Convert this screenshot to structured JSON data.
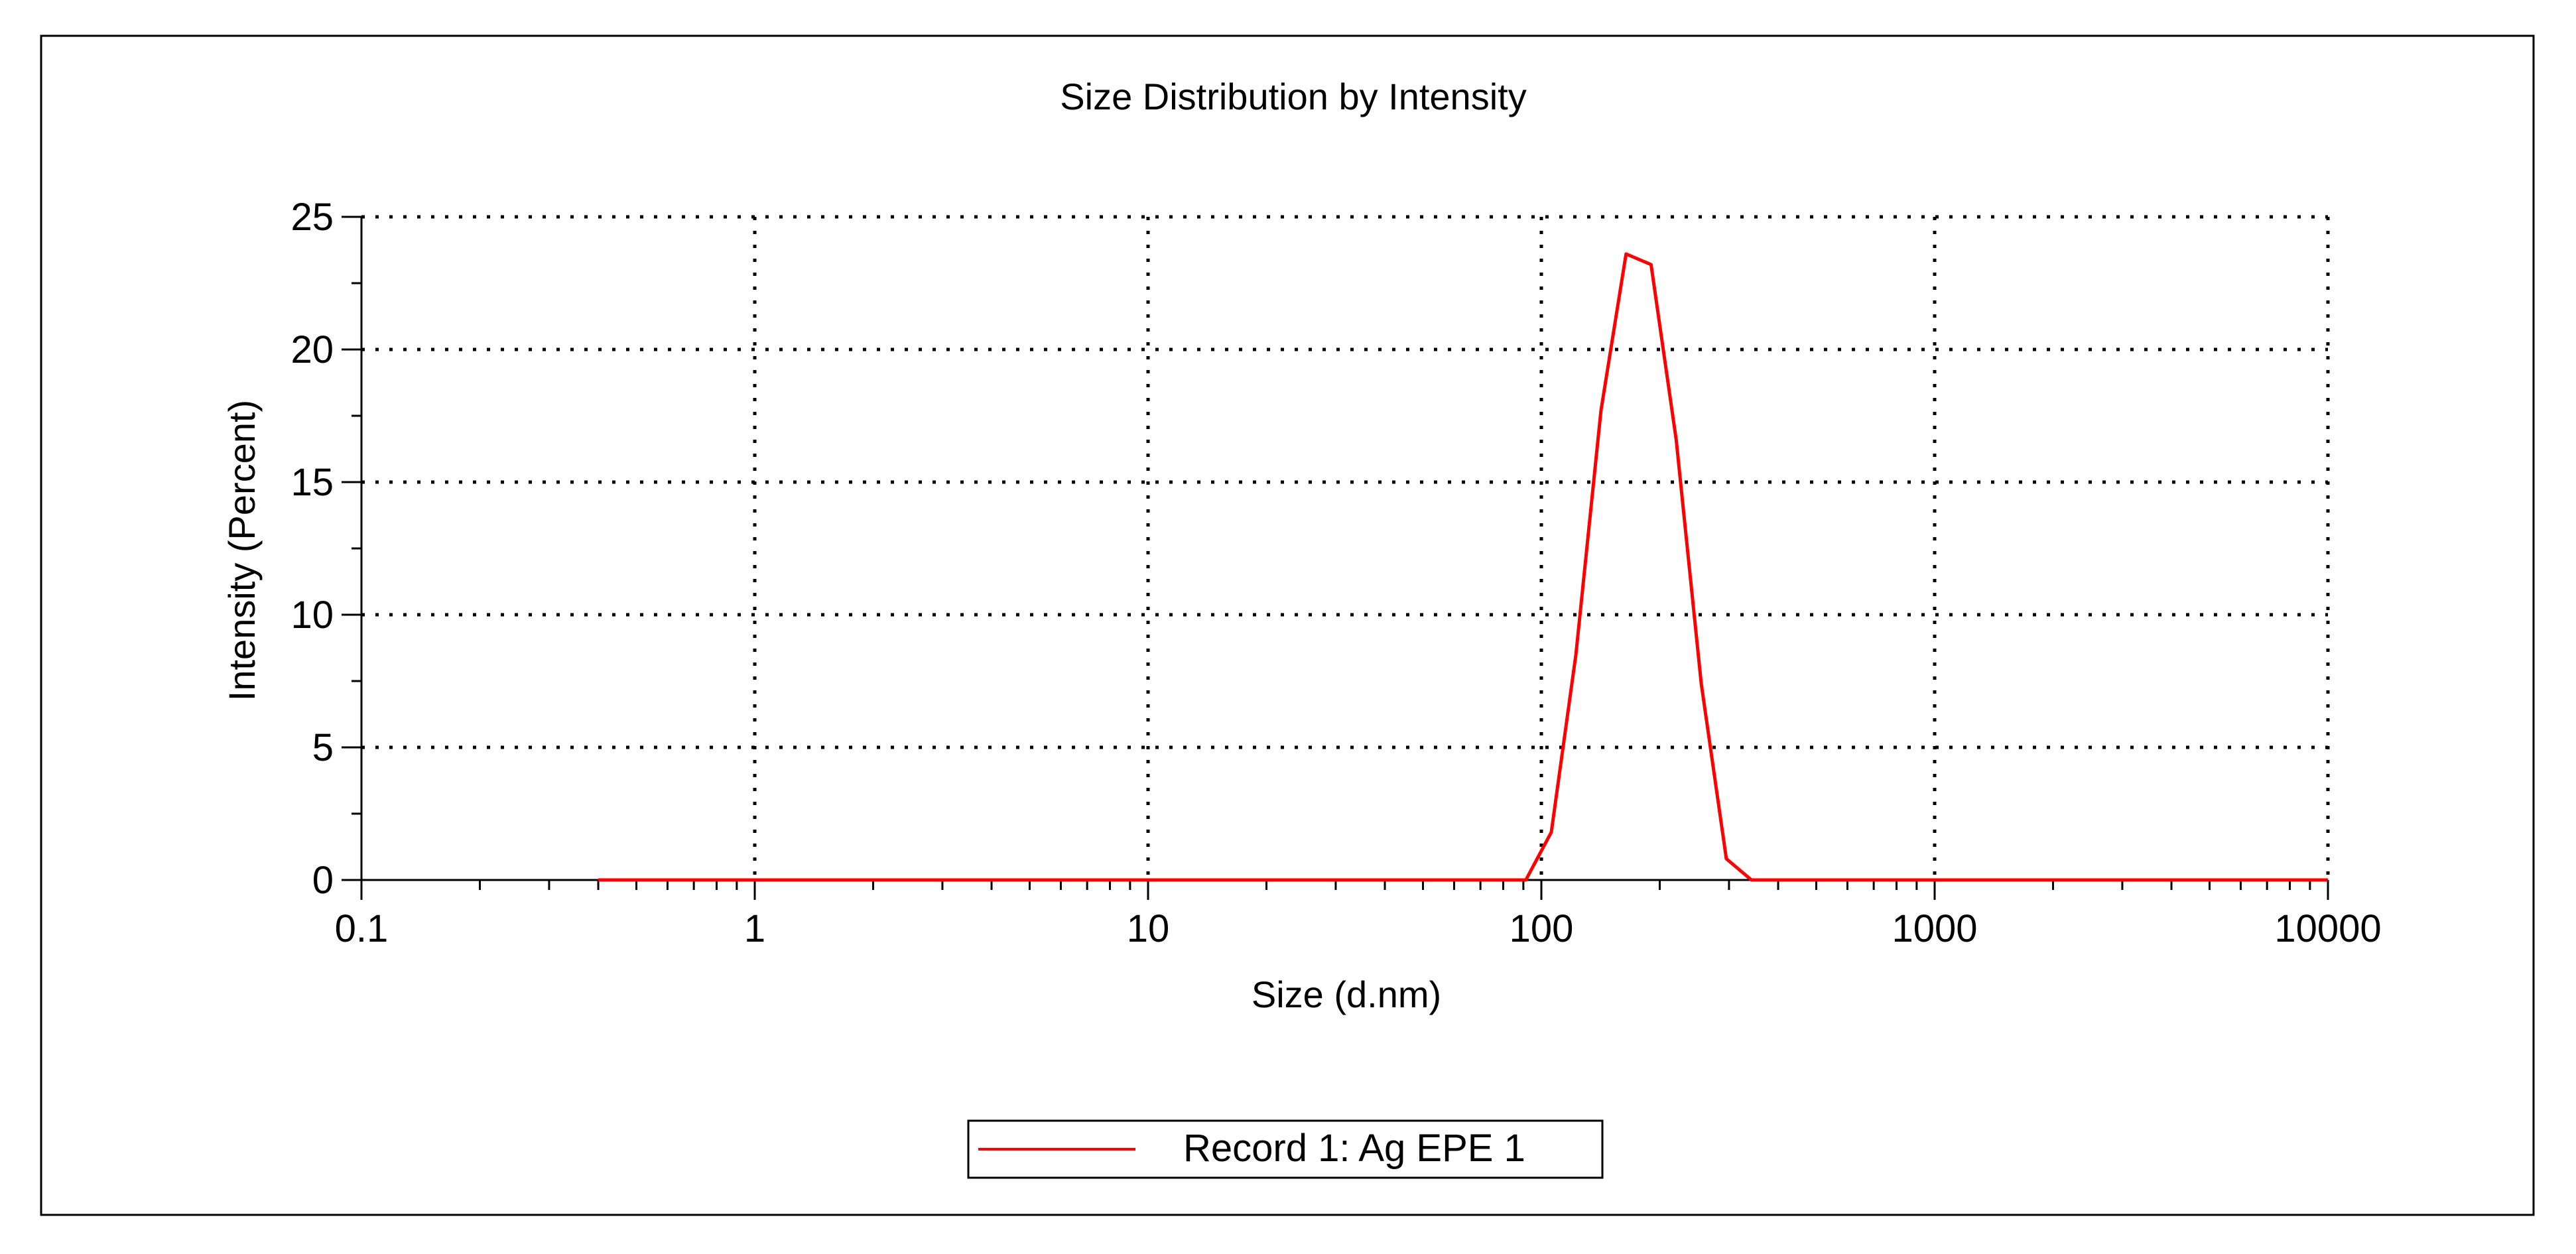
{
  "chart_data": {
    "type": "line",
    "title": "Size Distribution by Intensity",
    "xlabel": "Size (d.nm)",
    "ylabel": "Intensity (Percent)",
    "x_scale": "log",
    "xlim": [
      0.1,
      10000
    ],
    "ylim": [
      0,
      25
    ],
    "x_ticks": [
      0.1,
      1,
      10,
      100,
      1000,
      10000
    ],
    "x_tick_labels": [
      "0.1",
      "1",
      "10",
      "100",
      "1000",
      "10000"
    ],
    "y_ticks": [
      0,
      5,
      10,
      15,
      20,
      25
    ],
    "y_tick_labels": [
      "0",
      "5",
      "10",
      "15",
      "20",
      "25"
    ],
    "grid": true,
    "legend_position": "bottom-center",
    "series": [
      {
        "name": "Record 1: Ag EPE 1",
        "color": "#ff0000",
        "x": [
          0.4,
          0.5,
          0.7,
          1,
          2,
          5,
          10,
          20,
          50,
          80,
          91.3,
          106,
          122.4,
          141.8,
          164.2,
          190.1,
          220.2,
          255,
          295.3,
          342,
          400,
          700,
          1000,
          2000,
          5000,
          10000
        ],
        "y": [
          0,
          0,
          0,
          0,
          0,
          0,
          0,
          0,
          0,
          0,
          0,
          1.8,
          8.5,
          17.7,
          23.6,
          23.2,
          16.6,
          7.4,
          0.8,
          0,
          0,
          0,
          0,
          0,
          0,
          0
        ]
      }
    ]
  }
}
